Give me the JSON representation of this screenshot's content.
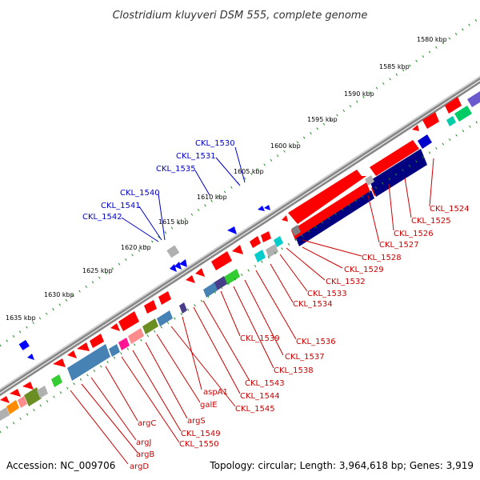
{
  "title": "Clostridium kluyveri DSM 555, complete genome",
  "accession": "Accession: NC_009706",
  "summary": "Topology: circular; Length: 3,964,618 bp; Genes: 3,919",
  "colors": {
    "forward_gene": "#ff0000",
    "reverse_label": "#0000cc",
    "forward_label": "#cc0000",
    "backbone": "#888888",
    "ruler_dots": "#228B22",
    "navy": "#000080",
    "steelblue": "#4682b4",
    "cyan": "#00cccc",
    "green": "#33cc33",
    "olive": "#6b8e23",
    "pink": "#ff8c8c",
    "magenta": "#ff1493",
    "orange": "#ff8c00",
    "grey": "#b0b0b0"
  },
  "ruler": [
    {
      "label": "1580 kbp"
    },
    {
      "label": "1585 kbp"
    },
    {
      "label": "1590 kbp"
    },
    {
      "label": "1595 kbp"
    },
    {
      "label": "1600 kbp"
    },
    {
      "label": "1605 kbp"
    },
    {
      "label": "1610 kbp"
    },
    {
      "label": "1615 kbp"
    },
    {
      "label": "1620 kbp"
    },
    {
      "label": "1625 kbp"
    },
    {
      "label": "1630 kbp"
    },
    {
      "label": "1635 kbp"
    }
  ],
  "reverse_labels": [
    "CKL_1530",
    "CKL_1531",
    "CKL_1535",
    "CKL_1540",
    "CKL_1541",
    "CKL_1542"
  ],
  "forward_labels": [
    "CKL_1524",
    "CKL_1525",
    "CKL_1526",
    "CKL_1527",
    "CKL_1528",
    "CKL_1529",
    "CKL_1532",
    "CKL_1533",
    "CKL_1534",
    "CKL_1536",
    "CKL_1537",
    "CKL_1538",
    "CKL_1539",
    "CKL_1543",
    "CKL_1544",
    "aspA1",
    "CKL_1545",
    "galE",
    "argS",
    "CKL_1549",
    "CKL_1550",
    "argC",
    "argJ",
    "argB",
    "argD"
  ]
}
